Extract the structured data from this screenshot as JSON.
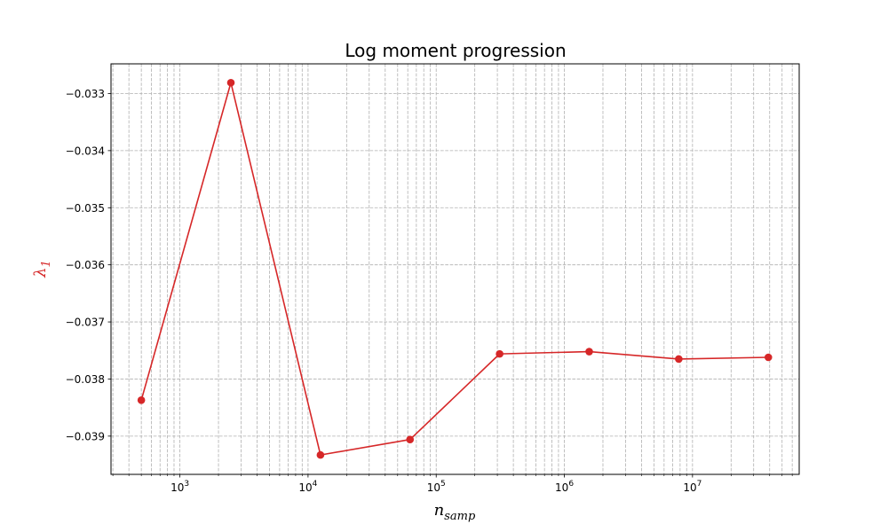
{
  "chart_data": {
    "type": "line",
    "title": "Log moment progression",
    "xlabel": {
      "base": "n",
      "subscript": "samp"
    },
    "ylabel": {
      "base": "λ",
      "subscript": "1"
    },
    "xscale": "log",
    "xlim": [
      290,
      68000000
    ],
    "ylim": [
      -0.03967,
      -0.03248
    ],
    "x_ticks": [
      {
        "value": 1000,
        "base": "10",
        "exp": "3"
      },
      {
        "value": 10000,
        "base": "10",
        "exp": "4"
      },
      {
        "value": 100000,
        "base": "10",
        "exp": "5"
      },
      {
        "value": 1000000,
        "base": "10",
        "exp": "6"
      },
      {
        "value": 10000000,
        "base": "10",
        "exp": "7"
      }
    ],
    "y_ticks": [
      {
        "value": -0.033,
        "label": "−0.033"
      },
      {
        "value": -0.034,
        "label": "−0.034"
      },
      {
        "value": -0.035,
        "label": "−0.035"
      },
      {
        "value": -0.036,
        "label": "−0.036"
      },
      {
        "value": -0.037,
        "label": "−0.037"
      },
      {
        "value": -0.038,
        "label": "−0.038"
      },
      {
        "value": -0.039,
        "label": "−0.039"
      }
    ],
    "grid": {
      "major": true,
      "minor_x": true,
      "style": "dashed"
    },
    "series": [
      {
        "color": "#d62728",
        "marker": "circle",
        "x": [
          500,
          2500,
          12500,
          62500,
          312500,
          1562500,
          7812500,
          39062500
        ],
        "y": [
          -0.03837,
          -0.03281,
          -0.03933,
          -0.03906,
          -0.03756,
          -0.03752,
          -0.03765,
          -0.03762
        ]
      }
    ]
  }
}
